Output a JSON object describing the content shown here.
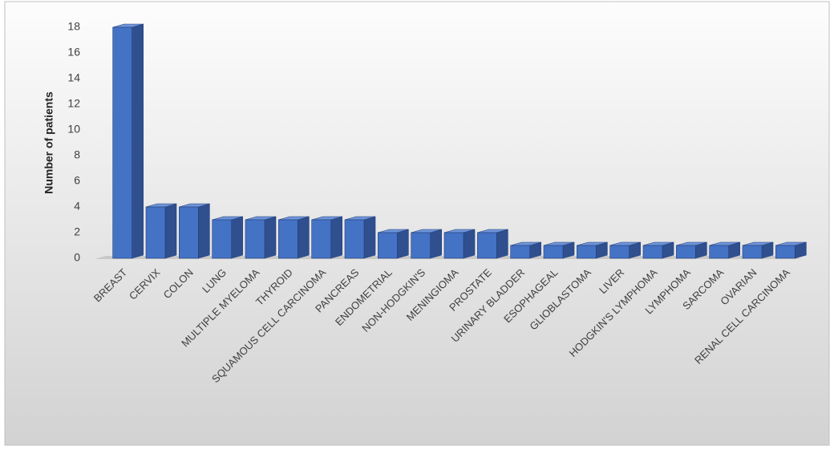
{
  "chart_data": {
    "type": "bar3d",
    "y_label": "Number of patients",
    "categories": [
      "BREAST",
      "CERVIX",
      "COLON",
      "LUNG",
      "MULTIPLE MYELOMA",
      "THYROID",
      "SQUAMOUS CELL CARCINOMA",
      "PANCREAS",
      "ENDOMETRIAL",
      "NON-HODGKIN'S",
      "MENINGIOMA",
      "PROSTATE",
      "URINARY BLADDER",
      "ESOPHAGEAL",
      "GLIOBLASTOMA",
      "LIVER",
      "HODGKIN'S LYMPHOMA",
      "LYMPHOMA",
      "SARCOMA",
      "OVARIAN",
      "RENAL CELL CARCINOMA"
    ],
    "values": [
      18,
      4,
      4,
      3,
      3,
      3,
      3,
      3,
      2,
      2,
      2,
      2,
      1,
      1,
      1,
      1,
      1,
      1,
      1,
      1,
      1
    ],
    "color": "#4472c4",
    "ylim": [
      0,
      18
    ],
    "yticks": [
      0,
      2,
      4,
      6,
      8,
      10,
      12,
      14,
      16,
      18
    ]
  }
}
